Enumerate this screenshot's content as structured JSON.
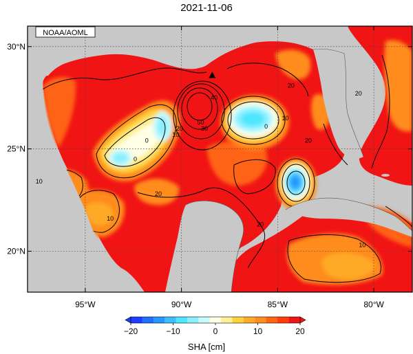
{
  "title": "2021-11-06",
  "source_label": "NOAA/AOML",
  "map": {
    "lon_range": [
      -98,
      -78
    ],
    "lat_range": [
      18,
      31
    ],
    "land_color": "#c8c8c8",
    "frame_color": "#000000",
    "grid": "dotted",
    "lon_ticks": [
      {
        "lon": -95,
        "label": "95°W"
      },
      {
        "lon": -90,
        "label": "90°W"
      },
      {
        "lon": -85,
        "label": "85°W"
      },
      {
        "lon": -80,
        "label": "80°W"
      }
    ],
    "lat_ticks": [
      {
        "lat": 30,
        "label": "30°N"
      },
      {
        "lat": 25,
        "label": "25°N"
      },
      {
        "lat": 20,
        "label": "20°N"
      }
    ],
    "contour_labels": [
      {
        "text": "20",
        "lon": -84.3,
        "lat": 28.0
      },
      {
        "text": "10",
        "lon": -84.6,
        "lat": 26.4
      },
      {
        "text": "0",
        "lon": -85.6,
        "lat": 26.0
      },
      {
        "text": "0",
        "lon": -91.8,
        "lat": 25.3
      },
      {
        "text": "10",
        "lon": -90.3,
        "lat": 25.6
      },
      {
        "text": "20",
        "lon": -90.1,
        "lat": 25.9
      },
      {
        "text": "30",
        "lon": -88.8,
        "lat": 25.9
      },
      {
        "text": "50",
        "lon": -89.0,
        "lat": 26.2
      },
      {
        "text": "40",
        "lon": -88.3,
        "lat": 27.4
      },
      {
        "text": "0",
        "lon": -92.4,
        "lat": 24.4
      },
      {
        "text": "10",
        "lon": -97.4,
        "lat": 23.3
      },
      {
        "text": "20",
        "lon": -91.2,
        "lat": 22.7
      },
      {
        "text": "10",
        "lon": -93.7,
        "lat": 21.5
      },
      {
        "text": "20",
        "lon": -80.8,
        "lat": 27.6
      },
      {
        "text": "20",
        "lon": -85.9,
        "lat": 21.2
      },
      {
        "text": "10",
        "lon": -80.6,
        "lat": 20.2
      },
      {
        "text": "20",
        "lon": -83.4,
        "lat": 25.3
      }
    ],
    "station_marker": {
      "lon": -88.4,
      "lat": 28.6,
      "shape": "triangle"
    }
  },
  "colorbar": {
    "min": -20,
    "max": 20,
    "tick_labels": [
      "−20",
      "−10",
      "0",
      "10",
      "20"
    ],
    "tick_values": [
      -20,
      -10,
      0,
      10,
      20
    ],
    "label": "SHA [cm]",
    "colors": [
      "#1e3cff",
      "#1e6eff",
      "#2896ff",
      "#3cbeff",
      "#50e6ff",
      "#8cf0ff",
      "#c8faff",
      "#ffffe6",
      "#fff096",
      "#ffd23c",
      "#ffaa28",
      "#ff8c1e",
      "#ff6414",
      "#ff3c0a",
      "#f01414"
    ]
  }
}
